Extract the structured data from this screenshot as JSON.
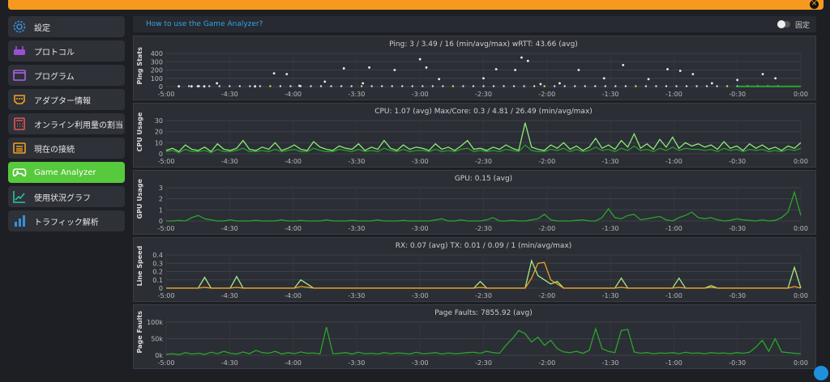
{
  "window": {
    "close_label": "✕"
  },
  "sidebar": {
    "items": [
      {
        "label": "設定",
        "icon": "gear-icon",
        "active": false,
        "color": "#3a8fd8"
      },
      {
        "label": "プロトコル",
        "icon": "router-icon",
        "active": false,
        "color": "#9b4fd3"
      },
      {
        "label": "プログラム",
        "icon": "window-icon",
        "active": false,
        "color": "#a964e0"
      },
      {
        "label": "アダプター情報",
        "icon": "adapter-icon",
        "active": false,
        "color": "#f0a020"
      },
      {
        "label": "オンライン利用量の割当",
        "icon": "calculator-icon",
        "active": false,
        "color": "#e05555"
      },
      {
        "label": "現在の接続",
        "icon": "list-icon",
        "active": false,
        "color": "#f0a020"
      },
      {
        "label": "Game Analyzer",
        "icon": "gamepad-icon",
        "active": true,
        "color": "#ffffff"
      },
      {
        "label": "使用状況グラフ",
        "icon": "trend-chart-icon",
        "active": false,
        "color": "#2cc0a0"
      },
      {
        "label": "トラフィック解析",
        "icon": "bar-chart-icon",
        "active": false,
        "color": "#3a8fd8"
      }
    ]
  },
  "header": {
    "help_link": "How to use the Game Analyzer?",
    "pin_label": "固定",
    "pinned": false
  },
  "x_ticks": [
    "-5:00",
    "-4:30",
    "-4:00",
    "-3:30",
    "-3:00",
    "-2:30",
    "-2:00",
    "-1:30",
    "-1:00",
    "-0:30",
    "0:00"
  ],
  "chart_data": [
    {
      "type": "scatter",
      "ylabel": "Ping Stats",
      "title": "Ping: 3 / 3.49 / 16 (min/avg/max)    wRTT: 43.66 (avg)",
      "y_ticks": [
        "0",
        "100",
        "200",
        "300",
        "400"
      ],
      "ylim": [
        0,
        400
      ],
      "points": [
        [
          -4.9,
          3
        ],
        [
          -4.8,
          3
        ],
        [
          -4.75,
          5
        ],
        [
          -4.7,
          3
        ],
        [
          -4.6,
          40
        ],
        [
          -4.3,
          3
        ],
        [
          -4.15,
          160
        ],
        [
          -4.05,
          150
        ],
        [
          -3.95,
          10
        ],
        [
          -3.75,
          60
        ],
        [
          -3.6,
          220
        ],
        [
          -3.45,
          40
        ],
        [
          -3.4,
          230
        ],
        [
          -3.2,
          200
        ],
        [
          -3.0,
          330
        ],
        [
          -2.95,
          230
        ],
        [
          -2.85,
          90
        ],
        [
          -2.5,
          100
        ],
        [
          -2.4,
          210
        ],
        [
          -2.25,
          200
        ],
        [
          -2.2,
          350
        ],
        [
          -2.15,
          310
        ],
        [
          -2.05,
          30
        ],
        [
          -1.9,
          40
        ],
        [
          -1.75,
          200
        ],
        [
          -1.55,
          100
        ],
        [
          -1.4,
          260
        ],
        [
          -1.2,
          90
        ],
        [
          -1.05,
          210
        ],
        [
          -0.95,
          190
        ],
        [
          -0.85,
          150
        ],
        [
          -0.7,
          40
        ],
        [
          -0.5,
          80
        ],
        [
          -0.3,
          150
        ],
        [
          -0.2,
          100
        ]
      ]
    },
    {
      "type": "line",
      "ylabel": "CPU Usage",
      "title": "CPU: 1.07 (avg)    Max/Core: 0.3 / 4.81 / 26.49 (min/avg/max)",
      "y_ticks": [
        "0",
        "10",
        "20",
        "30"
      ],
      "ylim": [
        0,
        30
      ],
      "series": [
        {
          "color": "#8ee87a",
          "values": [
            3,
            5,
            2,
            8,
            4,
            3,
            6,
            2,
            9,
            4,
            3,
            5,
            12,
            4,
            3,
            6,
            4,
            10,
            3,
            5,
            8,
            4,
            3,
            11,
            6,
            4,
            3,
            7,
            5,
            4,
            9,
            3,
            6,
            4,
            12,
            5,
            3,
            8,
            4,
            6,
            5,
            3,
            9,
            4,
            6,
            3,
            7,
            12,
            4,
            5,
            3,
            6,
            4,
            8,
            5,
            3,
            28,
            6,
            4,
            3,
            8,
            5,
            10,
            4,
            7,
            3,
            6,
            14,
            5,
            8,
            4,
            12,
            6,
            18,
            5,
            9,
            4,
            13,
            6,
            15,
            5,
            10,
            7,
            9,
            6,
            8,
            4,
            11,
            5,
            7,
            3,
            9,
            5,
            8,
            4,
            6,
            3,
            7,
            5,
            10
          ]
        },
        {
          "color": "#2a9d2a",
          "values": [
            2,
            3,
            1,
            4,
            2,
            2,
            3,
            1,
            4,
            2,
            2,
            3,
            5,
            2,
            2,
            3,
            2,
            4,
            2,
            3,
            4,
            2,
            2,
            5,
            3,
            2,
            2,
            4,
            3,
            2,
            4,
            2,
            3,
            2,
            5,
            3,
            2,
            4,
            2,
            3,
            3,
            2,
            4,
            2,
            3,
            2,
            4,
            5,
            2,
            3,
            2,
            3,
            2,
            4,
            3,
            2,
            8,
            3,
            2,
            2,
            4,
            3,
            5,
            2,
            4,
            2,
            3,
            6,
            3,
            4,
            2,
            5,
            3,
            7,
            3,
            4,
            2,
            5,
            3,
            6,
            3,
            5,
            4,
            4,
            3,
            4,
            2,
            5,
            3,
            4,
            2,
            4,
            3,
            4,
            2,
            3,
            2,
            4,
            3,
            5
          ]
        }
      ]
    },
    {
      "type": "line",
      "ylabel": "GPU Usage",
      "title": "GPU: 0.15 (avg)",
      "y_ticks": [
        "0",
        "1",
        "2",
        "3"
      ],
      "ylim": [
        0,
        3
      ],
      "series": [
        {
          "color": "#2aa52a",
          "values": [
            0,
            0,
            0.05,
            0,
            0.3,
            0.5,
            0.2,
            0.1,
            0,
            0,
            0.1,
            0,
            0,
            0,
            0.05,
            0,
            0,
            0,
            0.1,
            0,
            0,
            0.05,
            0,
            0,
            0,
            0.1,
            0,
            0,
            0,
            0.05,
            0,
            0,
            0,
            0.1,
            0,
            0,
            0,
            0.05,
            0,
            0,
            0,
            0,
            0.1,
            0.2,
            0,
            0,
            0.1,
            0,
            0,
            0,
            0.1,
            0.3,
            0,
            0,
            0.05,
            0,
            0,
            0.1,
            0.2,
            0.6,
            0.1,
            0,
            0,
            0,
            0.05,
            0.1,
            0,
            0,
            0.3,
            1.1,
            0.3,
            0.2,
            0.5,
            0.6,
            0.1,
            0.2,
            0.3,
            0.4,
            0.1,
            0,
            0.3,
            0.5,
            0.8,
            0.3,
            0.2,
            0.3,
            0.1,
            0,
            0.05,
            0.2,
            0.1,
            0.05,
            0,
            0.1,
            0,
            0.05,
            0.3,
            0.8,
            2.6,
            0.5
          ]
        }
      ]
    },
    {
      "type": "line",
      "ylabel": "Line Speed",
      "title": "RX: 0.07 (avg)    TX: 0.01 / 0.09 / 1 (min/avg/max)",
      "y_ticks": [
        "0",
        "0.1",
        "0.2",
        "0.3",
        "0.4"
      ],
      "ylim": [
        0,
        0.4
      ],
      "series": [
        {
          "color": "#a8e88a",
          "values": [
            0,
            0,
            0,
            0,
            0,
            0,
            0.13,
            0,
            0,
            0,
            0,
            0.14,
            0,
            0,
            0,
            0,
            0,
            0,
            0,
            0,
            0,
            0.1,
            0.05,
            0,
            0,
            0,
            0,
            0,
            0,
            0,
            0,
            0,
            0,
            0,
            0,
            0,
            0,
            0,
            0,
            0,
            0,
            0,
            0,
            0,
            0,
            0,
            0,
            0,
            0,
            0.08,
            0,
            0,
            0,
            0,
            0,
            0,
            0,
            0.33,
            0.15,
            0.1,
            0.05,
            0.08,
            0,
            0,
            0,
            0,
            0,
            0,
            0,
            0,
            0,
            0.12,
            0,
            0,
            0,
            0,
            0,
            0,
            0,
            0,
            0.12,
            0,
            0,
            0,
            0,
            0.03,
            0,
            0,
            0,
            0,
            0,
            0,
            0,
            0,
            0,
            0,
            0,
            0,
            0.25,
            0
          ]
        },
        {
          "color": "#f0a020",
          "values": [
            0,
            0,
            0,
            0,
            0,
            0,
            0.01,
            0,
            0,
            0,
            0,
            0.01,
            0,
            0,
            0,
            0,
            0,
            0,
            0,
            0,
            0,
            0.02,
            0.01,
            0,
            0,
            0,
            0,
            0,
            0,
            0,
            0,
            0,
            0,
            0,
            0,
            0,
            0,
            0,
            0,
            0,
            0,
            0,
            0,
            0,
            0,
            0,
            0,
            0,
            0,
            0.01,
            0,
            0,
            0,
            0,
            0,
            0,
            0,
            0.12,
            0.3,
            0.31,
            0.1,
            0.05,
            0,
            0,
            0,
            0,
            0,
            0,
            0,
            0,
            0,
            0.01,
            0,
            0,
            0,
            0,
            0,
            0,
            0,
            0,
            0.01,
            0,
            0,
            0,
            0,
            0.01,
            0,
            0,
            0,
            0,
            0,
            0,
            0,
            0,
            0,
            0,
            0,
            0,
            0.02,
            0
          ]
        }
      ]
    },
    {
      "type": "line",
      "ylabel": "Page Faults",
      "title": "Page Faults: 7855.92 (avg)",
      "y_ticks": [
        "0k",
        "50k",
        "100k"
      ],
      "ylim": [
        0,
        100000
      ],
      "series": [
        {
          "color": "#2aa52a",
          "values": [
            3000,
            5000,
            2000,
            8000,
            4000,
            6000,
            3000,
            9000,
            5000,
            12000,
            6000,
            4000,
            10000,
            5000,
            15000,
            8000,
            6000,
            12000,
            4000,
            8000,
            5000,
            10000,
            6000,
            7000,
            4000,
            85000,
            5000,
            6000,
            8000,
            4000,
            9000,
            5000,
            6000,
            4000,
            8000,
            5000,
            7000,
            6000,
            4000,
            9000,
            5000,
            6000,
            8000,
            4000,
            7000,
            5000,
            6000,
            8000,
            9000,
            6000,
            12000,
            8000,
            6000,
            30000,
            50000,
            75000,
            65000,
            40000,
            55000,
            30000,
            45000,
            20000,
            10000,
            8000,
            12000,
            6000,
            15000,
            80000,
            20000,
            12000,
            8000,
            75000,
            78000,
            10000,
            6000,
            8000,
            5000,
            7000,
            6000,
            8000,
            5000,
            9000,
            6000,
            7000,
            5000,
            8000,
            6000,
            7000,
            5000,
            8000,
            6000,
            9000,
            25000,
            45000,
            12000,
            50000,
            10000,
            8000,
            6000,
            5000
          ]
        }
      ]
    }
  ]
}
